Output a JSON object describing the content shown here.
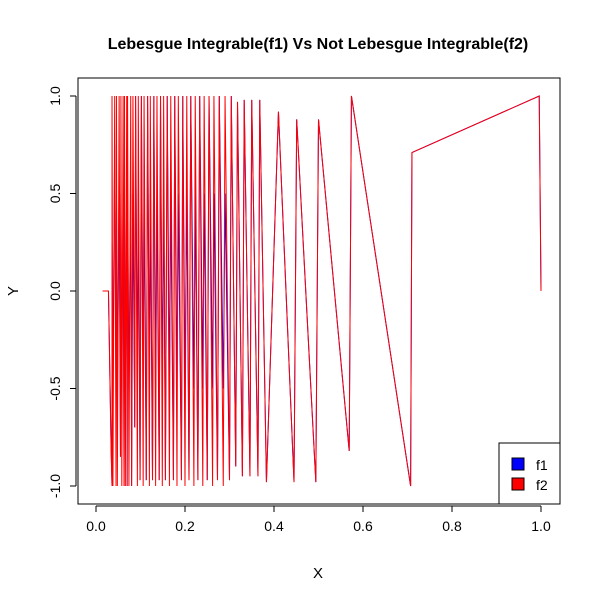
{
  "chart_data": {
    "type": "line",
    "title": "Lebesgue Integrable(f1)   Vs  Not Lebesgue Integrable(f2)",
    "xlabel": "X",
    "ylabel": "Y",
    "xlim": [
      0.0,
      1.0
    ],
    "ylim": [
      -1.0,
      1.0
    ],
    "x_ticks": [
      "0.0",
      "0.2",
      "0.4",
      "0.6",
      "0.8",
      "1.0"
    ],
    "y_ticks": [
      "-1.0",
      "-0.5",
      "0.0",
      "0.5",
      "1.0"
    ],
    "grid": false,
    "legend": {
      "position": "bottom-right",
      "entries": [
        {
          "label": "f1",
          "color": "#0000ff"
        },
        {
          "label": "f2",
          "color": "#ff0000"
        }
      ]
    },
    "series": [
      {
        "name": "f1",
        "color": "#0000ff",
        "x": [
          0.015,
          0.028,
          0.034,
          0.036,
          0.036,
          0.038,
          0.042,
          0.045,
          0.046,
          0.048,
          0.052,
          0.055,
          0.056,
          0.058,
          0.061,
          0.063,
          0.064,
          0.066,
          0.069,
          0.07,
          0.071,
          0.074,
          0.078,
          0.08,
          0.083,
          0.087,
          0.089,
          0.093,
          0.095,
          0.099,
          0.102,
          0.106,
          0.108,
          0.113,
          0.116,
          0.12,
          0.122,
          0.127,
          0.13,
          0.134,
          0.137,
          0.142,
          0.145,
          0.149,
          0.152,
          0.156,
          0.16,
          0.165,
          0.168,
          0.174,
          0.177,
          0.182,
          0.185,
          0.192,
          0.195,
          0.2,
          0.204,
          0.209,
          0.213,
          0.22,
          0.223,
          0.229,
          0.233,
          0.24,
          0.243,
          0.25,
          0.254,
          0.262,
          0.265,
          0.273,
          0.277,
          0.286,
          0.29,
          0.3,
          0.304,
          0.314,
          0.318,
          0.329,
          0.333,
          0.346,
          0.35,
          0.364,
          0.368,
          0.383,
          0.41,
          0.445,
          0.451,
          0.494,
          0.5,
          0.569,
          0.574,
          0.707,
          0.71,
          0.996,
          1.0
        ],
        "y": [
          0.0,
          0.0,
          -0.8,
          -1.0,
          0.25,
          -0.5,
          0.75,
          -0.5,
          0.5,
          -0.5,
          0.5,
          -0.85,
          0.5,
          -0.5,
          0.5,
          -1.0,
          0.5,
          -0.5,
          0.5,
          -1.0,
          0.5,
          -0.5,
          0.5,
          -1.0,
          0.5,
          -0.7,
          1.0,
          -0.5,
          0.5,
          -0.97,
          1.0,
          -0.5,
          0.5,
          -0.97,
          1.0,
          -0.5,
          0.5,
          -0.97,
          1.0,
          -0.5,
          0.5,
          -0.97,
          1.0,
          -0.5,
          0.5,
          -0.97,
          1.0,
          -0.5,
          0.5,
          -0.97,
          1.0,
          -0.5,
          0.5,
          -0.97,
          1.0,
          -0.5,
          0.5,
          -0.97,
          1.0,
          -0.5,
          0.5,
          -0.97,
          1.0,
          -0.5,
          0.5,
          -0.97,
          1.0,
          -0.5,
          0.5,
          -0.97,
          1.0,
          -0.5,
          0.5,
          -0.97,
          1.0,
          -0.9,
          0.97,
          -0.95,
          0.98,
          -0.95,
          0.98,
          -0.95,
          0.98,
          -0.98,
          0.92,
          -0.98,
          0.88,
          -0.98,
          0.88,
          -0.82,
          1.0,
          -1.0,
          0.71,
          1.0,
          0.0
        ]
      },
      {
        "name": "f2",
        "color": "#ff0000",
        "x": [
          0.015,
          0.028,
          0.034,
          0.036,
          0.036,
          0.038,
          0.042,
          0.045,
          0.046,
          0.048,
          0.052,
          0.055,
          0.056,
          0.058,
          0.061,
          0.063,
          0.064,
          0.066,
          0.069,
          0.07,
          0.071,
          0.074,
          0.078,
          0.08,
          0.083,
          0.087,
          0.089,
          0.093,
          0.095,
          0.099,
          0.102,
          0.106,
          0.108,
          0.113,
          0.116,
          0.12,
          0.122,
          0.127,
          0.13,
          0.134,
          0.137,
          0.142,
          0.145,
          0.149,
          0.152,
          0.156,
          0.16,
          0.165,
          0.168,
          0.174,
          0.177,
          0.182,
          0.185,
          0.192,
          0.195,
          0.2,
          0.204,
          0.209,
          0.213,
          0.22,
          0.223,
          0.229,
          0.233,
          0.24,
          0.243,
          0.25,
          0.254,
          0.262,
          0.265,
          0.273,
          0.277,
          0.286,
          0.29,
          0.3,
          0.304,
          0.314,
          0.318,
          0.329,
          0.333,
          0.346,
          0.35,
          0.364,
          0.368,
          0.383,
          0.41,
          0.445,
          0.451,
          0.494,
          0.5,
          0.569,
          0.574,
          0.707,
          0.71,
          0.996,
          1.0
        ],
        "y": [
          0.0,
          0.0,
          -0.83,
          -1.0,
          1.0,
          -1.0,
          1.0,
          -1.0,
          1.0,
          -1.0,
          1.0,
          -0.85,
          1.0,
          -1.0,
          1.0,
          -1.0,
          1.0,
          -1.0,
          1.0,
          -1.0,
          1.0,
          -1.0,
          1.0,
          -1.0,
          1.0,
          -0.7,
          1.0,
          -1.0,
          1.0,
          -0.97,
          1.0,
          -1.0,
          1.0,
          -0.97,
          1.0,
          -1.0,
          1.0,
          -0.97,
          1.0,
          -1.0,
          1.0,
          -0.97,
          1.0,
          -1.0,
          1.0,
          -0.97,
          1.0,
          -1.0,
          1.0,
          -0.97,
          1.0,
          -1.0,
          1.0,
          -0.97,
          1.0,
          -1.0,
          1.0,
          -0.97,
          1.0,
          -1.0,
          1.0,
          -0.97,
          1.0,
          -1.0,
          1.0,
          -0.97,
          1.0,
          -1.0,
          1.0,
          -0.97,
          1.0,
          -1.0,
          1.0,
          -0.97,
          1.0,
          -0.9,
          0.97,
          -0.95,
          0.98,
          -0.95,
          0.98,
          -0.95,
          0.98,
          -0.98,
          0.92,
          -0.98,
          0.88,
          -0.98,
          0.88,
          -0.82,
          1.0,
          -1.0,
          0.71,
          1.0,
          0.0
        ]
      }
    ]
  }
}
